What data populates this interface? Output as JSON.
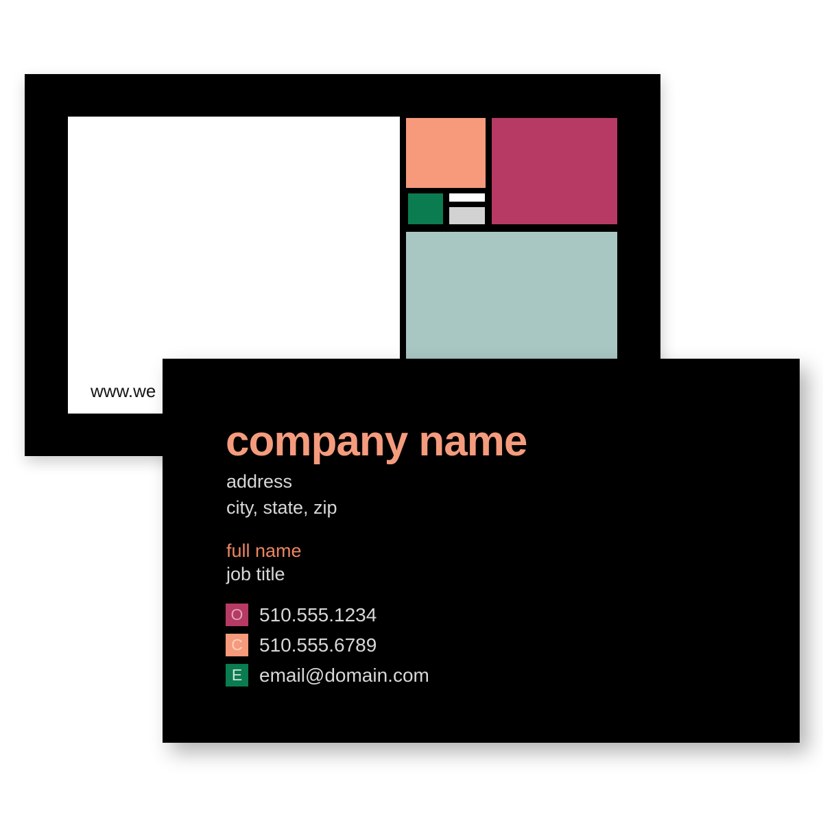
{
  "page": {
    "background": "#FFFFFF"
  },
  "back_card": {
    "website_text": "www.we",
    "card_color": "#000000",
    "panel_color": "#FFFFFF",
    "mosaic": {
      "peach_color": "#F69A7B",
      "magenta_color": "#B63A64",
      "green_color": "#0B7B50",
      "white_bar_color": "#FFFFFF",
      "gray_bar_color": "#D2D2D2",
      "sage_color": "#A8C7C3"
    }
  },
  "front_card": {
    "card_color": "#000000",
    "accent_color": "#F59B7D",
    "company_name": "company name",
    "address_line1": "address",
    "address_line2": "city, state, zip",
    "full_name": "full name",
    "full_name_color": "#ED8563",
    "job_title": "job title",
    "contacts": [
      {
        "icon_letter": "O",
        "icon_color": "#B63A64",
        "letter_color": "#DEA6B9",
        "value": "510.555.1234"
      },
      {
        "icon_letter": "C",
        "icon_color": "#F69A7B",
        "letter_color": "#FBD1C4",
        "value": "510.555.6789"
      },
      {
        "icon_letter": "E",
        "icon_color": "#0B7B50",
        "letter_color": "#CEE5DC",
        "value": "email@domain.com"
      }
    ]
  }
}
